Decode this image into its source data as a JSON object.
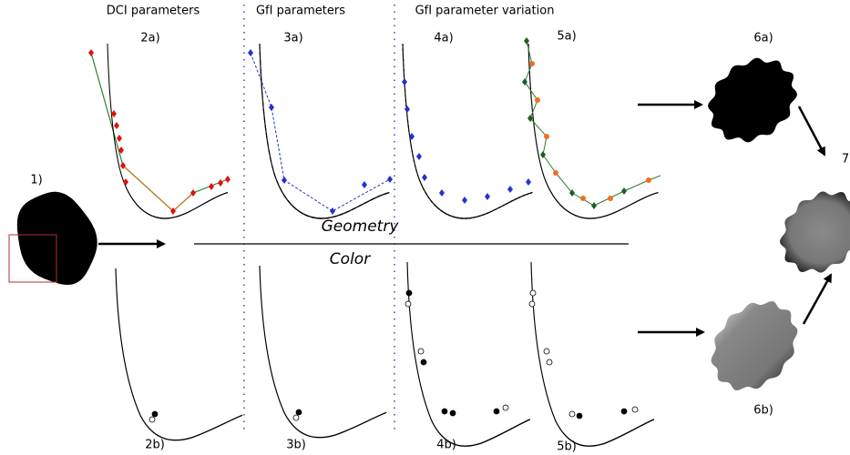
{
  "header": {
    "dci": "DCI parameters",
    "gfi": "GfI parameters",
    "variation": "GfI parameter variation"
  },
  "panels": {
    "p1": "1)",
    "p2a": "2a)",
    "p3a": "3a)",
    "p4a": "4a)",
    "p5a": "5a)",
    "p6a": "6a)",
    "p7": "7",
    "p2b": "2b)",
    "p3b": "3b)",
    "p4b": "4b)",
    "p5b": "5b)",
    "p6b": "6b)"
  },
  "sections": {
    "geometry": "Geometry",
    "color": "Color"
  }
}
